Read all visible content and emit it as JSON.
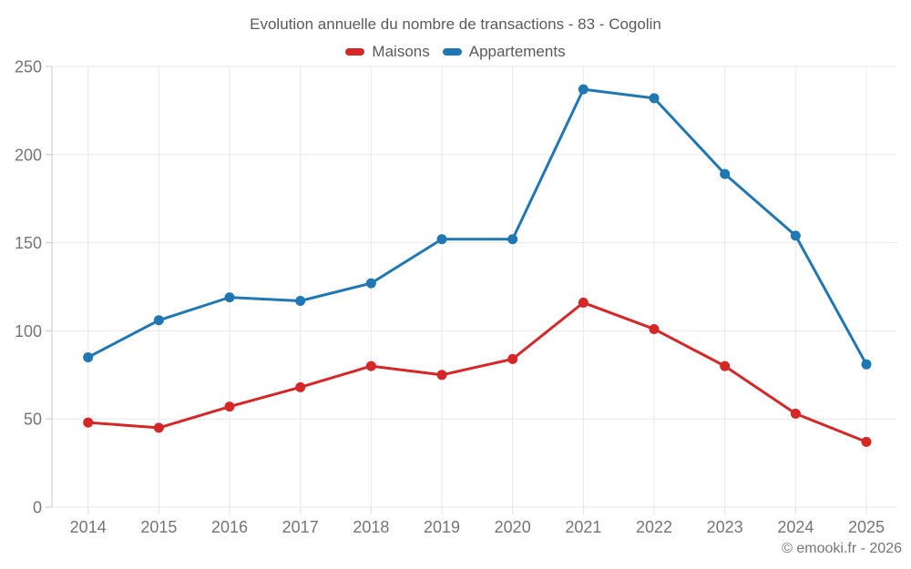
{
  "page": {
    "copyright": "© emooki.fr - 2026"
  },
  "chart_data": {
    "type": "line",
    "title": "Evolution annuelle du nombre de transactions - 83 - Cogolin",
    "categories": [
      "2014",
      "2015",
      "2016",
      "2017",
      "2018",
      "2019",
      "2020",
      "2021",
      "2022",
      "2023",
      "2024",
      "2025"
    ],
    "series": [
      {
        "name": "Maisons",
        "color": "#d62728",
        "values": [
          48,
          45,
          57,
          68,
          80,
          75,
          84,
          116,
          101,
          80,
          53,
          37
        ]
      },
      {
        "name": "Appartements",
        "color": "#1f77b4",
        "values": [
          85,
          106,
          119,
          117,
          127,
          152,
          152,
          237,
          232,
          189,
          154,
          81
        ]
      }
    ],
    "xlabel": "",
    "ylabel": "",
    "ylim": [
      0,
      250
    ],
    "yticks": [
      0,
      50,
      100,
      150,
      200,
      250
    ],
    "grid": true,
    "legend_position": "top",
    "marker": "circle",
    "annotations": [
      "© emooki.fr - 2026"
    ]
  },
  "theme": {
    "background": "#ffffff",
    "grid_color": "#e8e8e8",
    "axis_color": "#c8c8c8",
    "x_tick_color": "#e0e0e0",
    "tick_label_color": "#757575",
    "title_color": "#595a5c",
    "legend_text_color": "#595a5c",
    "copyright_color": "#757575"
  }
}
